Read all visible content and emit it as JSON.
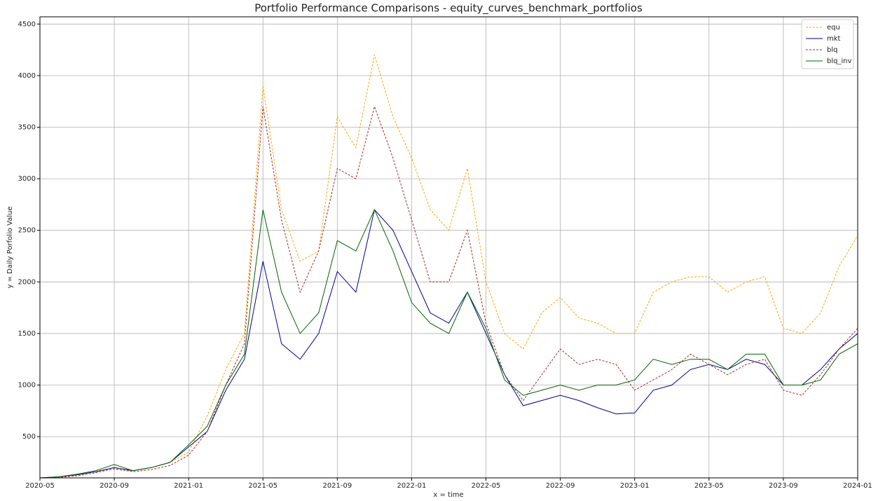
{
  "chart_data": {
    "type": "line",
    "title": "Portfolio Performance Comparisons - equity_curves_benchmark_portfolios",
    "xlabel": "x = time",
    "ylabel": "y = Daily Porfolio Value",
    "x": [
      "2020-05",
      "2020-06",
      "2020-07",
      "2020-08",
      "2020-09",
      "2020-10",
      "2020-11",
      "2020-12",
      "2021-01",
      "2021-02",
      "2021-03",
      "2021-04",
      "2021-05",
      "2021-06",
      "2021-07",
      "2021-08",
      "2021-09",
      "2021-10",
      "2021-11",
      "2021-12",
      "2022-01",
      "2022-02",
      "2022-03",
      "2022-04",
      "2022-05",
      "2022-06",
      "2022-07",
      "2022-08",
      "2022-09",
      "2022-10",
      "2022-11",
      "2022-12",
      "2023-01",
      "2023-02",
      "2023-03",
      "2023-04",
      "2023-05",
      "2023-06",
      "2023-07",
      "2023-08",
      "2023-09",
      "2023-10",
      "2023-11",
      "2023-12",
      "2024-01"
    ],
    "series": [
      {
        "name": "equ",
        "color": "#ffa500",
        "linestyle": "dashed",
        "values": [
          100,
          110,
          130,
          170,
          180,
          170,
          200,
          250,
          350,
          700,
          1150,
          1500,
          3900,
          2700,
          2200,
          2300,
          3600,
          3300,
          4200,
          3600,
          3200,
          2700,
          2500,
          3100,
          2000,
          1500,
          1350,
          1700,
          1850,
          1650,
          1600,
          1500,
          1500,
          1900,
          2000,
          2050,
          2050,
          1900,
          2000,
          2050,
          1550,
          1500,
          1700,
          2150,
          2450
        ]
      },
      {
        "name": "mkt",
        "color": "#00008b",
        "linestyle": "solid",
        "values": [
          100,
          110,
          130,
          160,
          200,
          170,
          200,
          250,
          400,
          550,
          950,
          1250,
          2200,
          1400,
          1250,
          1500,
          2100,
          1900,
          2700,
          2500,
          2100,
          1700,
          1600,
          1900,
          1500,
          1100,
          800,
          850,
          900,
          850,
          780,
          720,
          730,
          950,
          1000,
          1150,
          1200,
          1150,
          1250,
          1200,
          1000,
          1000,
          1150,
          1350,
          1500
        ]
      },
      {
        "name": "blq",
        "color": "#a52a2a",
        "linestyle": "dashed",
        "values": [
          100,
          105,
          120,
          150,
          190,
          160,
          180,
          220,
          320,
          550,
          1000,
          1400,
          3700,
          2600,
          1900,
          2300,
          3100,
          3000,
          3700,
          3200,
          2600,
          2000,
          2000,
          2500,
          1600,
          1100,
          850,
          1100,
          1350,
          1200,
          1250,
          1200,
          950,
          1050,
          1150,
          1300,
          1200,
          1100,
          1200,
          1250,
          950,
          900,
          1100,
          1350,
          1550
        ]
      },
      {
        "name": "blq_inv",
        "color": "#006400",
        "linestyle": "solid",
        "values": [
          100,
          110,
          135,
          170,
          230,
          170,
          200,
          250,
          420,
          600,
          1000,
          1300,
          2700,
          1900,
          1500,
          1700,
          2400,
          2300,
          2700,
          2300,
          1800,
          1600,
          1500,
          1900,
          1550,
          1050,
          900,
          950,
          1000,
          950,
          1000,
          1000,
          1050,
          1250,
          1200,
          1250,
          1250,
          1150,
          1300,
          1300,
          1000,
          1000,
          1050,
          1300,
          1400
        ]
      }
    ],
    "xlim": [
      "2020-05",
      "2024-01"
    ],
    "xticks": [
      "2020-05",
      "2020-09",
      "2021-01",
      "2021-05",
      "2021-09",
      "2022-01",
      "2022-05",
      "2022-09",
      "2023-01",
      "2023-05",
      "2023-09",
      "2024-01"
    ],
    "ylim": [
      100,
      4570
    ],
    "yticks": [
      500,
      1000,
      1500,
      2000,
      2500,
      3000,
      3500,
      4000,
      4500
    ],
    "grid": true,
    "legend": "upper right"
  }
}
